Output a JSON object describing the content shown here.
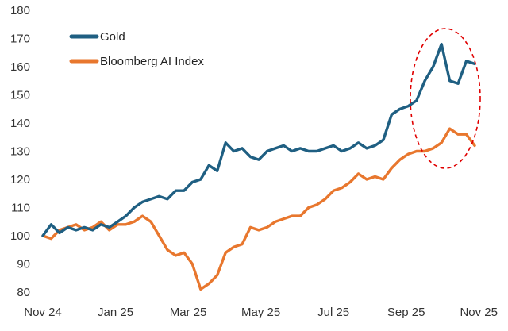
{
  "chart_data": {
    "type": "line",
    "title": "",
    "xlabel": "",
    "ylabel": "",
    "ylim": [
      80,
      180
    ],
    "yticks": [
      80,
      90,
      100,
      110,
      120,
      130,
      140,
      150,
      160,
      170,
      180
    ],
    "x_range_weeks": [
      0,
      52
    ],
    "xticks": [
      {
        "label": "Nov 24",
        "week": 0
      },
      {
        "label": "Jan 25",
        "week": 8.75
      },
      {
        "label": "Mar 25",
        "week": 17.5
      },
      {
        "label": "May 25",
        "week": 26.25
      },
      {
        "label": "Jul 25",
        "week": 35
      },
      {
        "label": "Sep 25",
        "week": 43.75
      },
      {
        "label": "Nov 25",
        "week": 52.5
      }
    ],
    "grid": false,
    "legend": "top-left",
    "colors": {
      "gold": "#1f5f82",
      "ai": "#e8772e",
      "annotation": "#e00000"
    },
    "series": [
      {
        "name": "Gold",
        "key": "gold",
        "x": [
          0,
          1,
          2,
          3,
          4,
          5,
          6,
          7,
          8,
          9,
          10,
          11,
          12,
          13,
          14,
          15,
          16,
          17,
          18,
          19,
          20,
          21,
          22,
          23,
          24,
          25,
          26,
          27,
          28,
          29,
          30,
          31,
          32,
          33,
          34,
          35,
          36,
          37,
          38,
          39,
          40,
          41,
          42,
          43,
          44,
          45,
          46,
          47,
          48,
          49,
          50,
          51,
          52
        ],
        "values": [
          100,
          104,
          101,
          103,
          102,
          103,
          102,
          104,
          103,
          105,
          107,
          110,
          112,
          113,
          114,
          113,
          116,
          116,
          119,
          120,
          125,
          123,
          133,
          130,
          131,
          128,
          127,
          130,
          131,
          132,
          130,
          131,
          130,
          130,
          131,
          132,
          130,
          131,
          133,
          131,
          132,
          134,
          143,
          145,
          146,
          148,
          155,
          160,
          168,
          155,
          154,
          162,
          161
        ]
      },
      {
        "name": "Bloomberg AI Index",
        "key": "ai",
        "x": [
          0,
          1,
          2,
          3,
          4,
          5,
          6,
          7,
          8,
          9,
          10,
          11,
          12,
          13,
          14,
          15,
          16,
          17,
          18,
          19,
          20,
          21,
          22,
          23,
          24,
          25,
          26,
          27,
          28,
          29,
          30,
          31,
          32,
          33,
          34,
          35,
          36,
          37,
          38,
          39,
          40,
          41,
          42,
          43,
          44,
          45,
          46,
          47,
          48,
          49,
          50,
          51,
          52
        ],
        "values": [
          100,
          99,
          102,
          103,
          104,
          102,
          103,
          105,
          102,
          104,
          104,
          105,
          107,
          105,
          100,
          95,
          93,
          94,
          90,
          81,
          83,
          86,
          94,
          96,
          97,
          103,
          102,
          103,
          105,
          106,
          107,
          107,
          110,
          111,
          113,
          116,
          117,
          119,
          122,
          120,
          121,
          120,
          124,
          127,
          129,
          130,
          130,
          131,
          133,
          138,
          136,
          136,
          132
        ]
      }
    ],
    "annotation": "dashed ellipse highlighting recent period Sep–Nov 25"
  }
}
